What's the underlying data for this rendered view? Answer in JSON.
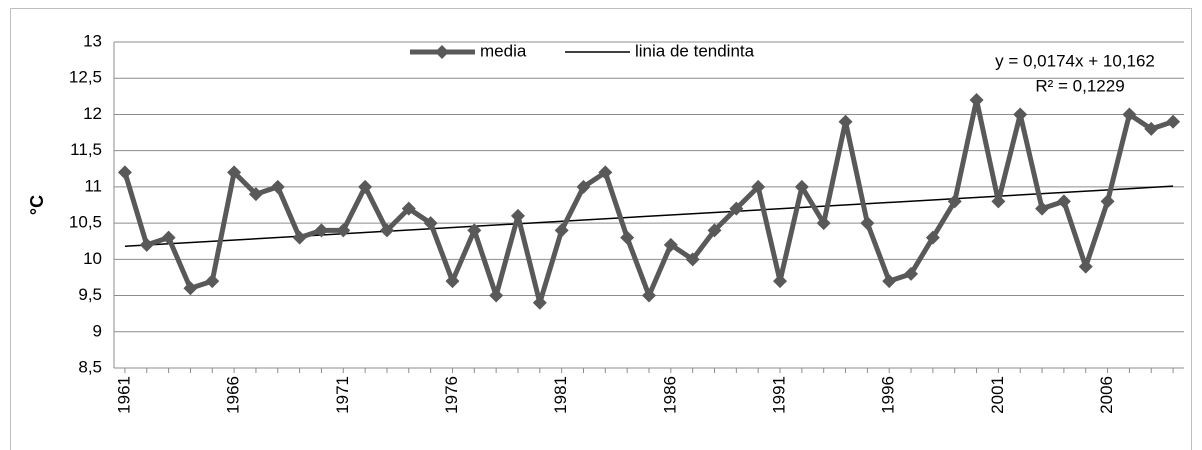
{
  "chart_data": {
    "type": "line",
    "categories": [
      "1961",
      null,
      null,
      null,
      null,
      "1966",
      null,
      null,
      null,
      null,
      "1971",
      null,
      null,
      null,
      null,
      "1976",
      null,
      null,
      null,
      null,
      "1981",
      null,
      null,
      null,
      null,
      "1986",
      null,
      null,
      null,
      null,
      "1991",
      null,
      null,
      null,
      null,
      "1996",
      null,
      null,
      null,
      null,
      "2001",
      null,
      null,
      null,
      null,
      "2006",
      null,
      null,
      null
    ],
    "series": [
      {
        "name": "media",
        "color": "#595959",
        "values": [
          11.2,
          10.2,
          10.3,
          9.6,
          9.7,
          11.2,
          10.9,
          11.0,
          10.3,
          10.4,
          10.4,
          11.0,
          10.4,
          10.7,
          10.5,
          9.7,
          10.4,
          9.5,
          10.6,
          9.4,
          10.4,
          11.0,
          11.2,
          10.3,
          9.5,
          10.2,
          10.0,
          10.4,
          10.7,
          11.0,
          9.7,
          11.0,
          10.5,
          11.9,
          10.5,
          9.7,
          9.8,
          10.3,
          10.8,
          12.2,
          10.8,
          12.0,
          10.7,
          10.8,
          9.9,
          10.8,
          12.0,
          11.8,
          11.9
        ]
      }
    ],
    "trend": {
      "name": "linia de tendinta",
      "color": "#000000",
      "start": 10.18,
      "end": 11.01
    },
    "equation": "y = 0,0174x + 10,162",
    "r_squared": "R² = 0,1229",
    "y_label": "°C",
    "ylim": [
      8.5,
      13
    ],
    "yticks": [
      {
        "value": 8.5,
        "label": "8,5"
      },
      9,
      {
        "value": 9.5,
        "label": "9,5"
      },
      10,
      {
        "value": 10.5,
        "label": "10,5"
      },
      11,
      {
        "value": 11.5,
        "label": "11,5"
      },
      12,
      {
        "value": 12.5,
        "label": "12,5"
      },
      13
    ],
    "grid": true,
    "legend": "top"
  }
}
